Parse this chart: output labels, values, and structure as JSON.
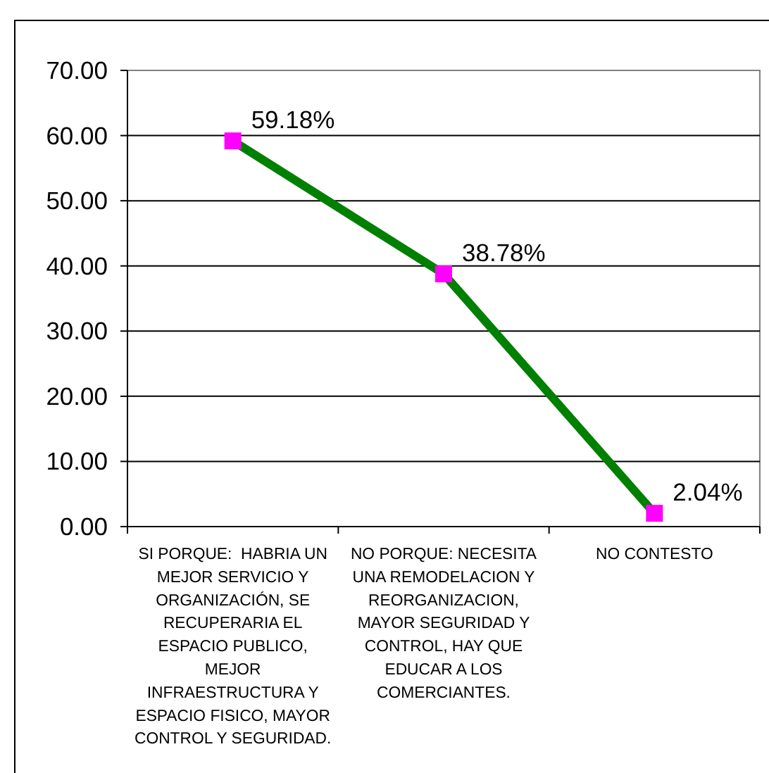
{
  "chart_data": {
    "type": "line",
    "categories": [
      "SI PORQUE:  HABRIA UN MEJOR SERVICIO Y ORGANIZACIÓN, SE RECUPERARIA EL ESPACIO PUBLICO, MEJOR INFRAESTRUCTURA Y ESPACIO FISICO, MAYOR CONTROL Y SEGURIDAD.",
      "NO PORQUE: NECESITA UNA REMODELACION Y REORGANIZACION, MAYOR SEGURIDAD Y CONTROL, HAY QUE EDUCAR A LOS COMERCIANTES.",
      "NO CONTESTO"
    ],
    "values": [
      59.18,
      38.78,
      2.04
    ],
    "value_labels": [
      "59.18%",
      "38.78%",
      "2.04%"
    ],
    "color": "#008000",
    "colors": [
      "#ff00ff",
      "#ff00ff",
      "#ff00ff"
    ],
    "marker": "square",
    "ylim": [
      0,
      70
    ],
    "yticks": [
      {
        "value": 0,
        "label": "0.00"
      },
      {
        "value": 10,
        "label": "10.00"
      },
      {
        "value": 20,
        "label": "20.00"
      },
      {
        "value": 30,
        "label": "30.00"
      },
      {
        "value": 40,
        "label": "40.00"
      },
      {
        "value": 50,
        "label": "50.00"
      },
      {
        "value": 60,
        "label": "60.00"
      },
      {
        "value": 70,
        "label": "70.00"
      }
    ],
    "grid": "y"
  }
}
